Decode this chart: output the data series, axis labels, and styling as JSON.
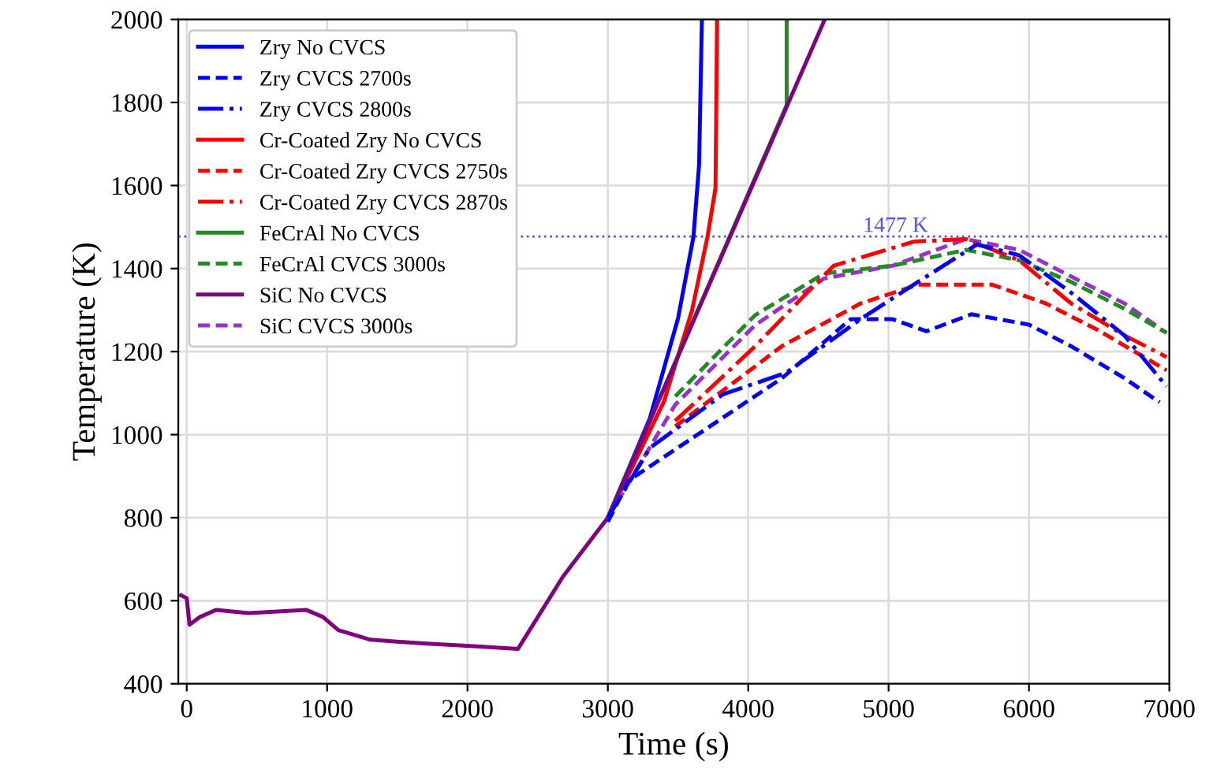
{
  "chart_data": {
    "type": "line",
    "xlabel": "Time (s)",
    "ylabel": "Temperature (K)",
    "xlim": [
      -60,
      7000
    ],
    "xticks": [
      0,
      1000,
      2000,
      3000,
      4000,
      5000,
      6000,
      7000
    ],
    "ylim": [
      400,
      2000
    ],
    "yticks": [
      400,
      600,
      800,
      1000,
      1200,
      1400,
      1600,
      1800,
      2000
    ],
    "grid": true,
    "legend": "top left",
    "ref_lines": [
      {
        "axis": "y",
        "value": 1477,
        "label": "1477 K",
        "color": "#5050ff",
        "line_style": "dotted"
      }
    ],
    "series": [
      {
        "name": "Zry No CVCS",
        "color": "#0000ff",
        "line_style": "solid",
        "x": [
          3000,
          3300,
          3500,
          3610,
          3650,
          3670
        ],
        "values": [
          800,
          1040,
          1280,
          1477,
          1650,
          2000
        ]
      },
      {
        "name": "Zry CVCS 2700s",
        "color": "#0000ff",
        "line_style": "dashed",
        "x": [
          3000,
          3150,
          3670,
          4240,
          4730,
          5030,
          5270,
          5590,
          6000,
          6300,
          6680,
          6930
        ],
        "values": [
          790,
          890,
          1007,
          1136,
          1278,
          1278,
          1249,
          1290,
          1265,
          1213,
          1136,
          1078
        ]
      },
      {
        "name": "Zry CVCS 2800s",
        "color": "#0000ff",
        "line_style": "dashdot",
        "x": [
          3000,
          3300,
          3820,
          4270,
          4800,
          5210,
          5630,
          5930,
          6300,
          6680,
          6980
        ],
        "values": [
          800,
          968,
          1097,
          1149,
          1278,
          1368,
          1458,
          1432,
          1342,
          1239,
          1116
        ]
      },
      {
        "name": "Cr-Coated Zry No CVCS",
        "color": "#ff0000",
        "line_style": "solid",
        "x": [
          3000,
          3400,
          3600,
          3710,
          3767,
          3778
        ],
        "values": [
          800,
          1080,
          1300,
          1477,
          1594,
          2000
        ]
      },
      {
        "name": "Cr-Coated Zry CVCS 2750s",
        "color": "#ff0000",
        "line_style": "dashed",
        "x": [
          3480,
          4240,
          4800,
          5210,
          5740,
          6120,
          6490,
          6980
        ],
        "values": [
          1020,
          1213,
          1316,
          1361,
          1361,
          1316,
          1252,
          1155
        ]
      },
      {
        "name": "Cr-Coated Zry CVCS 2870s",
        "color": "#ff0000",
        "line_style": "dashdot",
        "x": [
          3480,
          4050,
          4420,
          4610,
          5180,
          5550,
          5930,
          6300,
          6680,
          6980
        ],
        "values": [
          1033,
          1213,
          1342,
          1407,
          1465,
          1471,
          1420,
          1316,
          1239,
          1187
        ]
      },
      {
        "name": "FeCrAl No CVCS",
        "color": "#228b22",
        "line_style": "solid",
        "x": [
          3000,
          4274,
          4274
        ],
        "values": [
          800,
          1794,
          2000
        ]
      },
      {
        "name": "FeCrAl CVCS 3000s",
        "color": "#228b22",
        "line_style": "dashed",
        "x": [
          3480,
          4050,
          4540,
          5030,
          5550,
          5930,
          6300,
          6680,
          6980
        ],
        "values": [
          1092,
          1288,
          1388,
          1407,
          1445,
          1420,
          1368,
          1303,
          1245
        ]
      },
      {
        "name": "SiC No CVCS",
        "color": "#800080",
        "line_style": "solid",
        "x": [
          -40,
          0,
          20,
          95,
          210,
          440,
          850,
          970,
          1080,
          1310,
          1690,
          2070,
          2360,
          2680,
          3000,
          4545
        ],
        "values": [
          613,
          606,
          542,
          561,
          578,
          570,
          578,
          561,
          529,
          506,
          497,
          490,
          484,
          658,
          800,
          2000
        ]
      },
      {
        "name": "SiC CVCS 3000s",
        "color": "#9932cc",
        "line_style": "dashed",
        "x": [
          3000,
          3480,
          4050,
          4540,
          5030,
          5550,
          5930,
          6300,
          6680,
          6980
        ],
        "values": [
          800,
          1072,
          1264,
          1376,
          1407,
          1471,
          1445,
          1381,
          1316,
          1245
        ]
      }
    ]
  }
}
